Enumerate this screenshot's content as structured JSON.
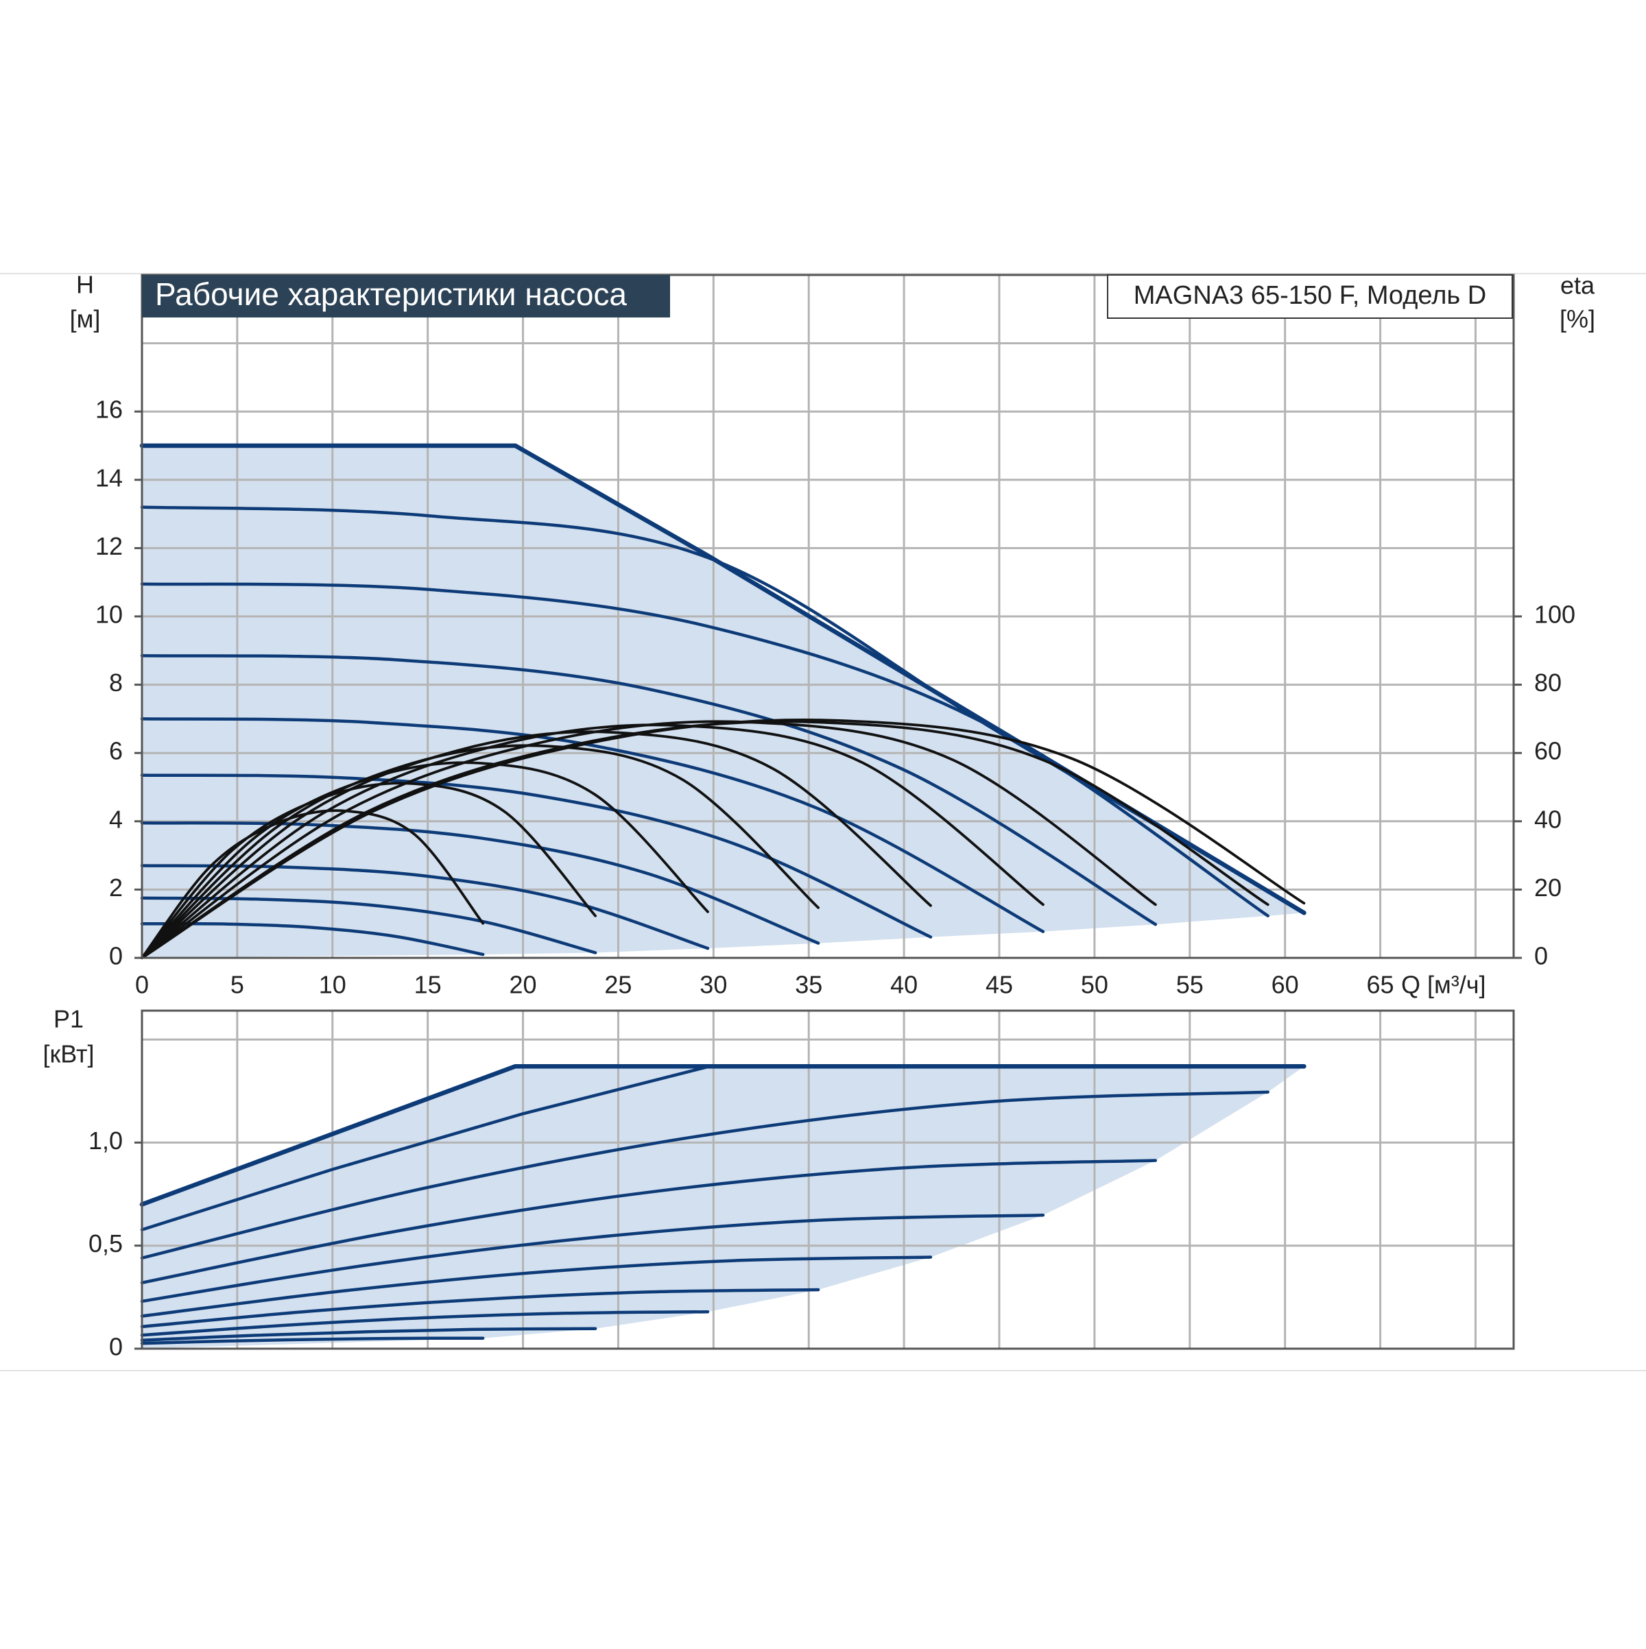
{
  "chart_data": [
    {
      "type": "line",
      "title": "Рабочие характеристики насоса",
      "model": "MAGNA3 65-150 F, Модель D",
      "y_label": "H",
      "y_unit": "[м]",
      "y2_label": "eta",
      "y2_unit": "[%]",
      "x_label": "Q [м³/ч]",
      "xlim": [
        0,
        72
      ],
      "xticks": [
        0,
        5,
        10,
        15,
        20,
        25,
        30,
        35,
        40,
        45,
        50,
        55,
        60,
        65
      ],
      "xgrid": [
        0,
        5,
        10,
        15,
        20,
        25,
        30,
        35,
        40,
        45,
        50,
        55,
        60,
        65,
        70
      ],
      "ylim": [
        0,
        20
      ],
      "yticks": [
        0,
        2,
        4,
        6,
        8,
        10,
        12,
        14,
        16
      ],
      "ygrid": [
        0,
        2,
        4,
        6,
        8,
        10,
        12,
        14,
        16,
        18,
        20
      ],
      "y2lim": [
        0,
        200
      ],
      "y2ticks": [
        0,
        20,
        40,
        60,
        80,
        100
      ],
      "grid": true,
      "area_color": "#d3e0ef",
      "series": [
        {
          "color": "#0d3b78",
          "smooth": false,
          "x": [
            0,
            19.6,
            29.8,
            61
          ],
          "values": [
            15,
            15,
            11.75,
            1.32
          ]
        },
        {
          "color": "#0d3b78",
          "x": [
            0,
            15,
            29.8,
            45,
            61
          ],
          "values": [
            13.2,
            12.95,
            11.7,
            6.6,
            1.32
          ]
        },
        {
          "color": "#0d3b78",
          "x": [
            0,
            14.8,
            29.55,
            44.3,
            59.1
          ],
          "values": [
            10.95,
            10.8,
            9.73,
            6.85,
            1.23
          ]
        },
        {
          "color": "#0d3b78",
          "x": [
            0,
            13.3,
            26.6,
            39.9,
            53.2
          ],
          "values": [
            8.85,
            8.73,
            7.87,
            5.53,
            0.98
          ]
        },
        {
          "color": "#0d3b78",
          "x": [
            0,
            11.8,
            23.65,
            35.5,
            47.3
          ],
          "values": [
            7.0,
            6.9,
            6.22,
            4.37,
            0.77
          ]
        },
        {
          "color": "#0d3b78",
          "x": [
            0,
            10.35,
            20.7,
            31.05,
            41.4
          ],
          "values": [
            5.35,
            5.28,
            4.76,
            3.35,
            0.61
          ]
        },
        {
          "color": "#0d3b78",
          "x": [
            0,
            8.9,
            17.75,
            26.6,
            35.5
          ],
          "values": [
            3.95,
            3.9,
            3.51,
            2.46,
            0.43
          ]
        },
        {
          "color": "#0d3b78",
          "x": [
            0,
            7.4,
            14.85,
            22.3,
            29.7
          ],
          "values": [
            2.7,
            2.66,
            2.4,
            1.68,
            0.28
          ]
        },
        {
          "color": "#0d3b78",
          "x": [
            0,
            5.95,
            11.9,
            17.85,
            23.8
          ],
          "values": [
            1.75,
            1.72,
            1.55,
            1.07,
            0.15
          ]
        },
        {
          "color": "#0d3b78",
          "x": [
            0,
            4.5,
            8.95,
            13.4,
            17.9
          ],
          "values": [
            1.0,
            0.99,
            0.89,
            0.62,
            0.1
          ]
        },
        {
          "color": "#111111",
          "axis": "y2",
          "x": [
            0,
            3.58,
            7.16,
            10.74,
            14.32,
            17.9
          ],
          "values": [
            0,
            26.7,
            39.6,
            43,
            36.1,
            10.1
          ]
        },
        {
          "color": "#111111",
          "axis": "y2",
          "x": [
            0,
            4.76,
            9.52,
            14.28,
            19.04,
            23.8
          ],
          "values": [
            0,
            31.6,
            46.9,
            51,
            42.8,
            12.3
          ]
        },
        {
          "color": "#111111",
          "axis": "y2",
          "x": [
            0,
            5.94,
            11.88,
            17.82,
            23.76,
            29.7
          ],
          "values": [
            0,
            35.3,
            52.4,
            57,
            47.9,
            13.5
          ]
        },
        {
          "color": "#111111",
          "axis": "y2",
          "x": [
            0,
            7.1,
            14.2,
            21.3,
            28.4,
            35.5
          ],
          "values": [
            0,
            38.4,
            57,
            62,
            52.1,
            14.7
          ]
        },
        {
          "color": "#111111",
          "axis": "y2",
          "x": [
            0,
            8.28,
            16.56,
            24.84,
            33.12,
            41.4
          ],
          "values": [
            0,
            40.9,
            60.7,
            66,
            55.4,
            15.3
          ]
        },
        {
          "color": "#111111",
          "axis": "y2",
          "x": [
            0,
            9.46,
            18.92,
            28.38,
            37.84,
            47.3
          ],
          "values": [
            0,
            42.2,
            62.6,
            68,
            57.1,
            15.6
          ]
        },
        {
          "color": "#111111",
          "axis": "y2",
          "x": [
            0,
            10.64,
            21.28,
            31.92,
            42.56,
            53.2
          ],
          "values": [
            0,
            42.8,
            63.5,
            69,
            58,
            15.6
          ]
        },
        {
          "color": "#111111",
          "axis": "y2",
          "x": [
            0,
            11.82,
            23.64,
            35.46,
            47.28,
            59.1
          ],
          "values": [
            0,
            42.8,
            63.5,
            69,
            58,
            15.6
          ]
        },
        {
          "color": "#111111",
          "axis": "y2",
          "x": [
            0,
            12.2,
            24.4,
            36.6,
            48.8,
            61
          ],
          "values": [
            0,
            43.1,
            63.9,
            69.5,
            58.4,
            16
          ]
        }
      ]
    },
    {
      "type": "line",
      "y_label": "P1",
      "y_unit": "[кВт]",
      "xlim": [
        0,
        72
      ],
      "xgrid": [
        0,
        5,
        10,
        15,
        20,
        25,
        30,
        35,
        40,
        45,
        50,
        55,
        60,
        65,
        70
      ],
      "ylim": [
        0,
        1.64
      ],
      "yticks": [
        0,
        {
          "value": 0.5,
          "label": "0,5"
        },
        {
          "value": 1.0,
          "label": "1,0"
        }
      ],
      "ygrid": [
        0,
        0.5,
        1.0,
        1.5
      ],
      "grid": true,
      "area_color": "#d3e0ef",
      "series": [
        {
          "color": "#0d3b78",
          "smooth": false,
          "x": [
            0,
            19.6,
            61
          ],
          "values": [
            0.7,
            1.37,
            1.37
          ]
        },
        {
          "color": "#0d3b78",
          "smooth": false,
          "x": [
            0,
            10,
            20,
            29.8,
            61
          ],
          "values": [
            0.577,
            0.87,
            1.14,
            1.37,
            1.37
          ]
        },
        {
          "color": "#0d3b78",
          "x": [
            0,
            14.8,
            29.55,
            44.3,
            59.1
          ],
          "values": [
            0.44,
            0.778,
            1.036,
            1.197,
            1.245
          ]
        },
        {
          "color": "#0d3b78",
          "x": [
            0,
            13.3,
            26.6,
            39.9,
            53.2
          ],
          "values": [
            0.32,
            0.569,
            0.759,
            0.877,
            0.913
          ]
        },
        {
          "color": "#0d3b78",
          "x": [
            0,
            11.83,
            23.65,
            35.48,
            47.3
          ],
          "values": [
            0.23,
            0.406,
            0.539,
            0.623,
            0.648
          ]
        },
        {
          "color": "#0d3b78",
          "x": [
            0,
            10.35,
            20.7,
            31.05,
            41.4
          ],
          "values": [
            0.158,
            0.278,
            0.37,
            0.427,
            0.444
          ]
        },
        {
          "color": "#0d3b78",
          "x": [
            0,
            8.88,
            17.75,
            26.63,
            35.5
          ],
          "values": [
            0.107,
            0.182,
            0.239,
            0.275,
            0.286
          ]
        },
        {
          "color": "#0d3b78",
          "x": [
            0,
            7.43,
            14.85,
            22.28,
            29.7
          ],
          "values": [
            0.066,
            0.113,
            0.15,
            0.172,
            0.179
          ]
        },
        {
          "color": "#0d3b78",
          "x": [
            0,
            5.95,
            11.9,
            17.85,
            23.8
          ],
          "values": [
            0.041,
            0.065,
            0.082,
            0.094,
            0.097
          ]
        },
        {
          "color": "#0d3b78",
          "x": [
            0,
            4.48,
            8.95,
            13.43,
            17.9
          ],
          "values": [
            0.026,
            0.037,
            0.045,
            0.05,
            0.051
          ]
        }
      ]
    }
  ]
}
